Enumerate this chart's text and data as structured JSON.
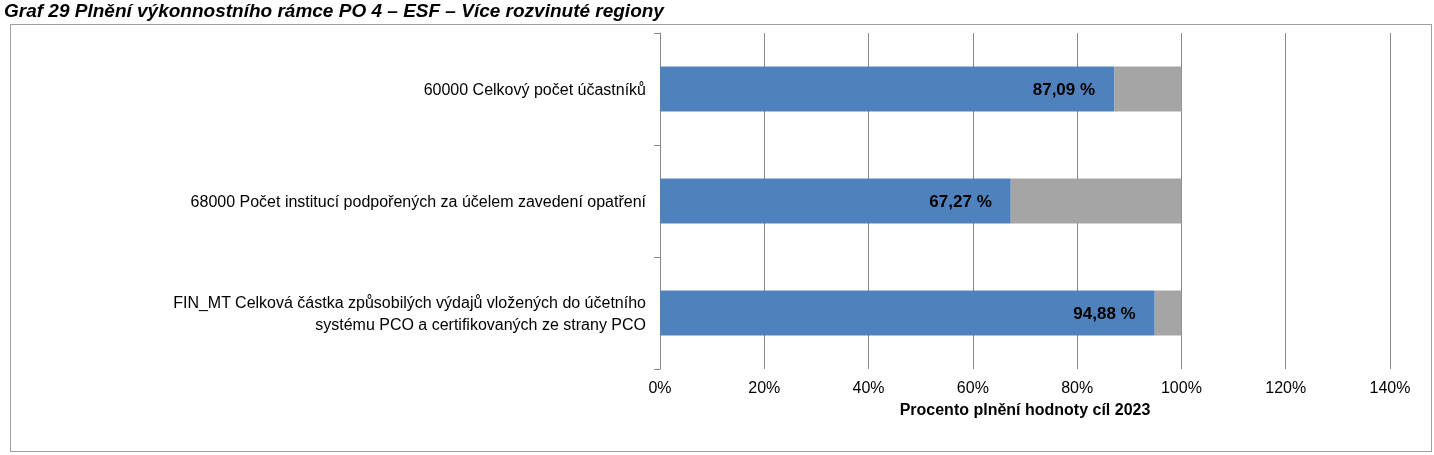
{
  "chart_data": {
    "type": "bar",
    "orientation": "horizontal",
    "stacked": true,
    "title": "Graf 29 Plnění výkonnostního rámce PO 4 – ESF – Více rozvinuté regiony",
    "xlabel": "Procento plnění hodnoty cíl 2023",
    "categories": [
      "60000 Celkový počet účastníků",
      "68000 Počet institucí podpořených za účelem zavedení opatření",
      "FIN_MT Celková částka způsobilých výdajů vložených do účetního\nsystému PCO a certifikovaných ze strany PCO"
    ],
    "series": [
      {
        "color": "#4f81bd",
        "values": [
          87.09,
          67.27,
          94.88
        ],
        "value_labels": [
          "87,09 %",
          "67,27 %",
          "94,88 %"
        ]
      },
      {
        "color": "#a5a5a5",
        "values": [
          12.9,
          32.7,
          5.1
        ]
      }
    ],
    "xlim": [
      0,
      140
    ],
    "xticks": [
      {
        "value": 0,
        "label": "0%"
      },
      {
        "value": 20,
        "label": "20%"
      },
      {
        "value": 40,
        "label": "40%"
      },
      {
        "value": 60,
        "label": "60%"
      },
      {
        "value": 80,
        "label": "80%"
      },
      {
        "value": 100,
        "label": "100%"
      },
      {
        "value": 120,
        "label": "120%"
      },
      {
        "value": 140,
        "label": "140%"
      }
    ],
    "grid": "x"
  }
}
